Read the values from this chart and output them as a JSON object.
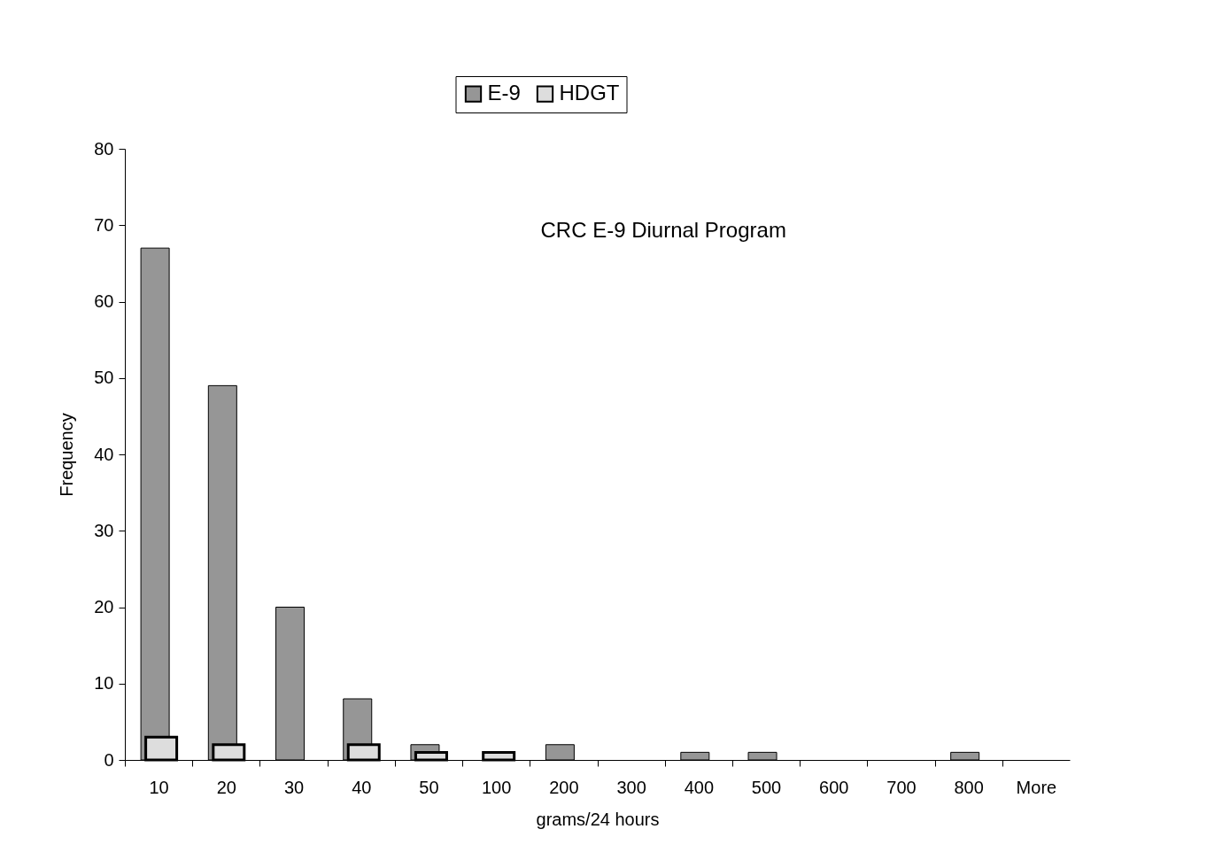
{
  "chart_data": {
    "type": "bar",
    "title": "CRC E-9 Diurnal Program",
    "xlabel": "grams/24 hours",
    "ylabel": "Frequency",
    "categories": [
      "10",
      "20",
      "30",
      "40",
      "50",
      "100",
      "200",
      "300",
      "400",
      "500",
      "600",
      "700",
      "800",
      "More"
    ],
    "series": [
      {
        "name": "E-9",
        "color": "#969696",
        "values": [
          67,
          49,
          20,
          8,
          2,
          0,
          2,
          0,
          1,
          1,
          0,
          0,
          1,
          0
        ]
      },
      {
        "name": "HDGT",
        "color": "#dddddd",
        "values": [
          3,
          2,
          0,
          2,
          1,
          1,
          0,
          0,
          0,
          0,
          0,
          0,
          0,
          0
        ]
      }
    ],
    "ylim": [
      0,
      80
    ],
    "yticks": [
      0,
      10,
      20,
      30,
      40,
      50,
      60,
      70,
      80
    ],
    "grid": false,
    "legend": "top"
  }
}
